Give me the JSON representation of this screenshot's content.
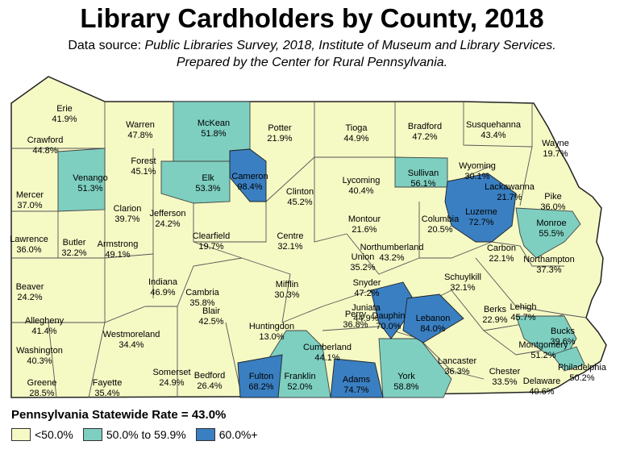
{
  "title": "Library Cardholders by County, 2018",
  "source_prefix": "Data source: ",
  "source_italic": "Public Libraries Survey, 2018, Institute of Museum and Library Services.",
  "source_line2": "Prepared by the Center for Rural Pennsylvania.",
  "statewide": "Pennsylvania Statewide Rate = 43.0%",
  "legend": [
    {
      "label": "<50.0%",
      "color": "#f5f9c4"
    },
    {
      "label": "50.0% to 59.9%",
      "color": "#7ecfc0"
    },
    {
      "label": "60.0%+",
      "color": "#3a7fc1"
    }
  ],
  "counties": [
    {
      "name": "Erie",
      "value": "41.9%"
    },
    {
      "name": "Warren",
      "value": "47.8%"
    },
    {
      "name": "McKean",
      "value": "51.8%"
    },
    {
      "name": "Potter",
      "value": "21.9%"
    },
    {
      "name": "Tioga",
      "value": "44.9%"
    },
    {
      "name": "Bradford",
      "value": "47.2%"
    },
    {
      "name": "Susquehanna",
      "value": "43.4%"
    },
    {
      "name": "Wayne",
      "value": "19.7%"
    },
    {
      "name": "Crawford",
      "value": "44.8%"
    },
    {
      "name": "Forest",
      "value": "45.1%"
    },
    {
      "name": "Venango",
      "value": "51.3%"
    },
    {
      "name": "Elk",
      "value": "53.3%"
    },
    {
      "name": "Cameron",
      "value": "98.4%"
    },
    {
      "name": "Clinton",
      "value": "45.2%"
    },
    {
      "name": "Lycoming",
      "value": "40.4%"
    },
    {
      "name": "Sullivan",
      "value": "56.1%"
    },
    {
      "name": "Wyoming",
      "value": "30.1%"
    },
    {
      "name": "Lackawanna",
      "value": "21.7%"
    },
    {
      "name": "Pike",
      "value": "36.0%"
    },
    {
      "name": "Mercer",
      "value": "37.0%"
    },
    {
      "name": "Clarion",
      "value": "39.7%"
    },
    {
      "name": "Jefferson",
      "value": "24.2%"
    },
    {
      "name": "Clearfield",
      "value": "19.7%"
    },
    {
      "name": "Centre",
      "value": "32.1%"
    },
    {
      "name": "Montour",
      "value": "21.6%"
    },
    {
      "name": "Columbia",
      "value": "20.5%"
    },
    {
      "name": "Luzerne",
      "value": "72.7%"
    },
    {
      "name": "Monroe",
      "value": "55.5%"
    },
    {
      "name": "Lawrence",
      "value": "36.0%"
    },
    {
      "name": "Butler",
      "value": "32.2%"
    },
    {
      "name": "Armstrong",
      "value": "49.1%"
    },
    {
      "name": "Union",
      "value": "35.2%"
    },
    {
      "name": "Northumberland",
      "value": "43.2%"
    },
    {
      "name": "Carbon",
      "value": "22.1%"
    },
    {
      "name": "Northampton",
      "value": "37.3%"
    },
    {
      "name": "Beaver",
      "value": "24.2%"
    },
    {
      "name": "Indiana",
      "value": "46.9%"
    },
    {
      "name": "Snyder",
      "value": "47.2%"
    },
    {
      "name": "Mifflin",
      "value": "30.3%"
    },
    {
      "name": "Schuylkill",
      "value": "32.1%"
    },
    {
      "name": "Allegheny",
      "value": "41.4%"
    },
    {
      "name": "Cambria",
      "value": "35.8%"
    },
    {
      "name": "Blair",
      "value": "42.5%"
    },
    {
      "name": "Juniata",
      "value": "44.9%"
    },
    {
      "name": "Lehigh",
      "value": "45.7%"
    },
    {
      "name": "Huntingdon",
      "value": "13.0%"
    },
    {
      "name": "Perry",
      "value": "36.8%"
    },
    {
      "name": "Dauphin",
      "value": "70.0%"
    },
    {
      "name": "Lebanon",
      "value": "84.0%"
    },
    {
      "name": "Berks",
      "value": "22.9%"
    },
    {
      "name": "Bucks",
      "value": "39.6%"
    },
    {
      "name": "Westmoreland",
      "value": "34.4%"
    },
    {
      "name": "Washington",
      "value": "40.3%"
    },
    {
      "name": "Cumberland",
      "value": "44.1%"
    },
    {
      "name": "Montgomery",
      "value": "51.2%"
    },
    {
      "name": "Somerset",
      "value": "24.9%"
    },
    {
      "name": "Bedford",
      "value": "26.4%"
    },
    {
      "name": "Fulton",
      "value": "68.2%"
    },
    {
      "name": "Franklin",
      "value": "52.0%"
    },
    {
      "name": "Adams",
      "value": "74.7%"
    },
    {
      "name": "York",
      "value": "58.8%"
    },
    {
      "name": "Lancaster",
      "value": "36.3%"
    },
    {
      "name": "Chester",
      "value": "33.5%"
    },
    {
      "name": "Philadelphia",
      "value": "50.2%"
    },
    {
      "name": "Delaware",
      "value": "40.6%"
    },
    {
      "name": "Greene",
      "value": "28.5%"
    },
    {
      "name": "Fayette",
      "value": "35.4%"
    }
  ]
}
